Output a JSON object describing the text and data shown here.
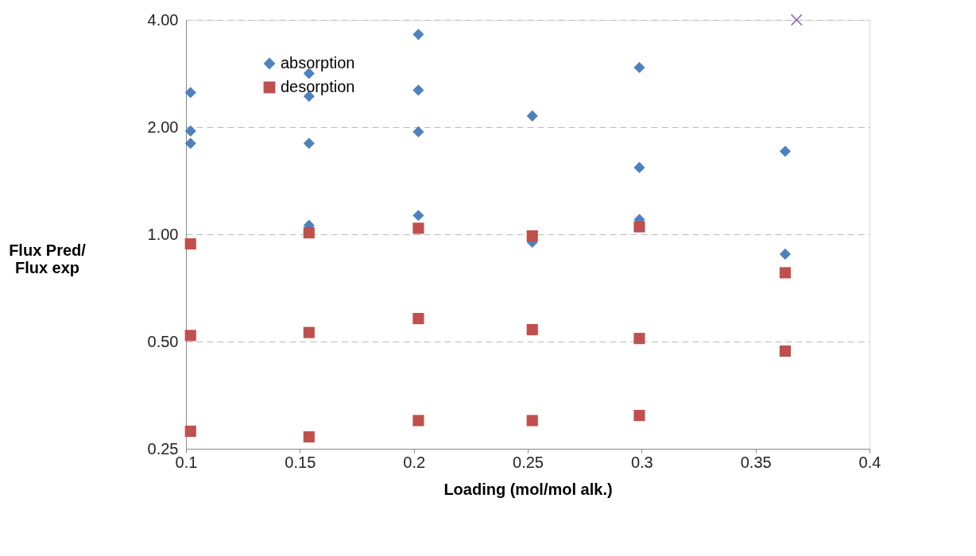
{
  "chart_data": {
    "type": "scatter",
    "xlabel": "Loading (mol/mol alk.)",
    "ylabel": "Flux Pred/\nFlux exp",
    "series": [
      {
        "name": "absorption",
        "color": "#4f81bd",
        "marker": "diamond",
        "x": [
          0.102,
          0.102,
          0.102,
          0.154,
          0.154,
          0.154,
          0.154,
          0.202,
          0.202,
          0.202,
          0.202,
          0.252,
          0.252,
          0.299,
          0.299,
          0.299,
          0.363,
          0.363
        ],
        "values": [
          2.5,
          1.95,
          1.8,
          2.83,
          2.44,
          1.8,
          1.06,
          3.64,
          2.54,
          1.94,
          1.13,
          2.15,
          0.95,
          2.94,
          1.54,
          1.1,
          1.71,
          0.88
        ]
      },
      {
        "name": "desorption",
        "color": "#c0504d",
        "marker": "square",
        "x": [
          0.102,
          0.102,
          0.102,
          0.154,
          0.154,
          0.154,
          0.202,
          0.202,
          0.202,
          0.252,
          0.252,
          0.252,
          0.299,
          0.299,
          0.299,
          0.363,
          0.363
        ],
        "values": [
          0.94,
          0.52,
          0.28,
          1.01,
          0.53,
          0.27,
          1.04,
          0.58,
          0.3,
          0.99,
          0.54,
          0.3,
          1.05,
          0.51,
          0.31,
          0.78,
          0.47
        ]
      },
      {
        "color": "#8064a2",
        "marker": "cross",
        "x": [
          0.368
        ],
        "values": [
          4.0
        ]
      }
    ],
    "xlim": [
      0.1,
      0.4
    ],
    "xticks": [
      0.1,
      0.15,
      0.2,
      0.25,
      0.3,
      0.35,
      0.4
    ],
    "ylim": [
      0.25,
      4
    ],
    "yticks": [
      {
        "value": 0.25,
        "label": "0.25"
      },
      {
        "value": 0.5,
        "label": "0.50"
      },
      {
        "value": 1,
        "label": "1.00"
      },
      {
        "value": 2,
        "label": "2.00"
      },
      {
        "value": 4,
        "label": "4.00"
      }
    ],
    "log": "y",
    "grid": "y",
    "legend": "top left"
  }
}
